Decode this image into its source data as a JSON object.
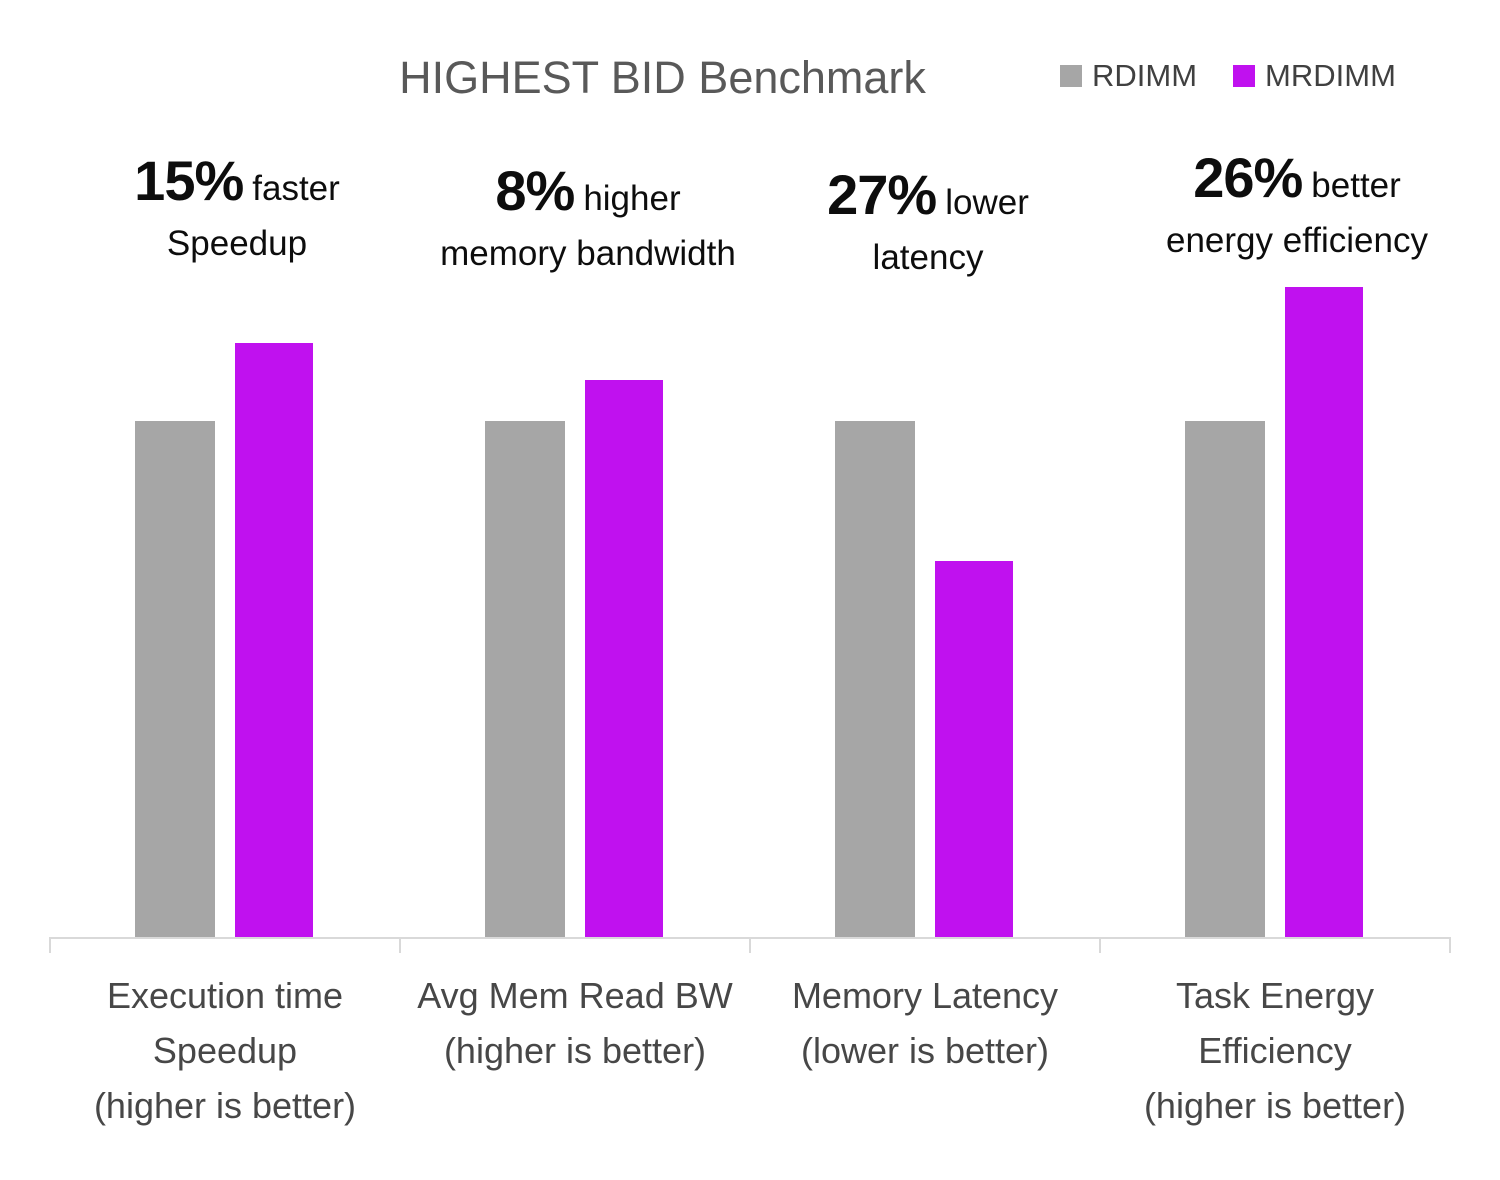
{
  "chart_data": {
    "type": "bar",
    "title": "HIGHEST BID Benchmark",
    "categories": [
      "Execution time\nSpeedup\n(higher is better)",
      "Avg Mem Read BW\n(higher is better)",
      "Memory Latency\n(lower is better)",
      "Task Energy\nEfficiency\n(higher is better)"
    ],
    "series": [
      {
        "name": "RDIMM",
        "color": "#a6a6a6",
        "values": [
          100,
          100,
          100,
          100
        ]
      },
      {
        "name": "MRDIMM",
        "color": "#c011ef",
        "values": [
          115,
          108,
          73,
          126
        ]
      }
    ],
    "unit": "relative to RDIMM = 100",
    "ylim": [
      0,
      135
    ],
    "grid": false,
    "legend_position": "top-right",
    "annotations": [
      {
        "big": "15%",
        "rest": "faster",
        "line2": "Speedup"
      },
      {
        "big": "8%",
        "rest": "higher",
        "line2": "memory bandwidth"
      },
      {
        "big": "27%",
        "rest": "lower",
        "line2": "latency"
      },
      {
        "big": "26%",
        "rest": "better",
        "line2": "energy efficiency"
      }
    ],
    "xlabel": "",
    "ylabel": ""
  },
  "colors": {
    "axis": "#d9d9d9",
    "title_text": "#595959",
    "category_text": "#474747",
    "annotation_text": "#0d0d0d"
  }
}
